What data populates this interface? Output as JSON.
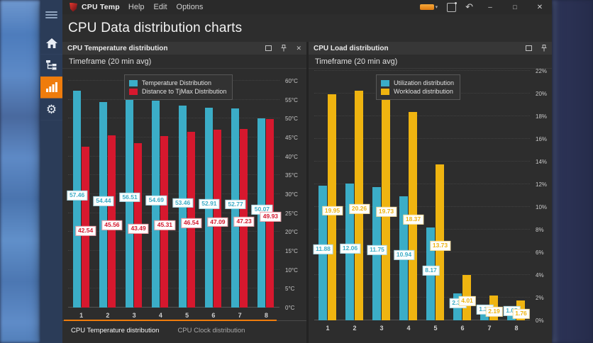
{
  "titlebar": {
    "app_name": "CPU Temp",
    "menus": [
      "Help",
      "Edit",
      "Options"
    ],
    "accent_color": "#ef7c0c"
  },
  "sidebar": {
    "icons": [
      "menu",
      "home",
      "sensor-tree",
      "charts",
      "settings"
    ],
    "active_item": "charts"
  },
  "page_title": "CPU Data distribution charts",
  "tabs": {
    "items": [
      {
        "label": "CPU Temperature distribution",
        "active": true
      },
      {
        "label": "CPU Clock distribution",
        "active": false
      }
    ]
  },
  "chart_data": [
    {
      "type": "bar",
      "title": "CPU Temperature distribution",
      "subtitle": "Timeframe (20 min avg)",
      "categories": [
        "1",
        "2",
        "3",
        "4",
        "5",
        "6",
        "7",
        "8"
      ],
      "series": [
        {
          "name": "Temperature Distribution",
          "color": "#3badc7",
          "values": [
            57.46,
            54.44,
            56.51,
            54.69,
            53.46,
            52.91,
            52.77,
            50.07
          ]
        },
        {
          "name": "Distance to TjMax Distribution",
          "color": "#d6182e",
          "values": [
            42.54,
            45.56,
            43.49,
            45.31,
            46.54,
            47.09,
            47.23,
            49.93
          ]
        }
      ],
      "ylim": [
        0,
        60
      ],
      "ytick_step": 5,
      "ylabel_suffix": "°C",
      "legend_position": "top-left",
      "grid": true
    },
    {
      "type": "bar",
      "title": "CPU Load distribution",
      "subtitle": "Timeframe (20 min avg)",
      "categories": [
        "1",
        "2",
        "3",
        "4",
        "5",
        "6",
        "7",
        "8"
      ],
      "series": [
        {
          "name": "Utilization distribution",
          "color": "#3badc7",
          "values": [
            11.88,
            12.06,
            11.75,
            10.94,
            8.17,
            2.39,
            1.31,
            1.05
          ]
        },
        {
          "name": "Workload distribution",
          "color": "#efb410",
          "values": [
            19.95,
            20.26,
            19.73,
            18.37,
            13.73,
            4.01,
            2.19,
            1.76
          ]
        }
      ],
      "ylim": [
        0,
        22
      ],
      "ytick_step": 2,
      "ylabel_suffix": "%",
      "legend_position": "top-left",
      "grid": true
    }
  ]
}
